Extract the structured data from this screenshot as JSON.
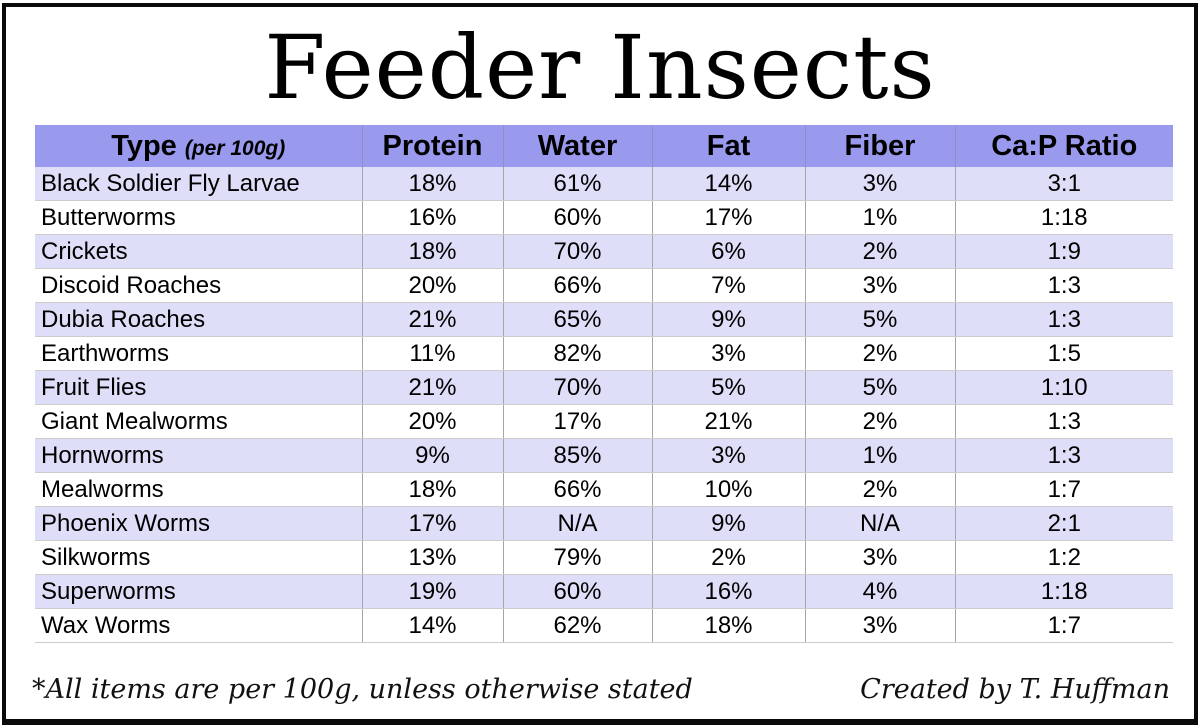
{
  "title": "Feeder Insects",
  "colors": {
    "header_bg": "#9999ee",
    "row_alt_bg": "#dedef8",
    "row_bg": "#ffffff",
    "border": "#0a0a0a",
    "text": "#000000"
  },
  "table": {
    "type_header": {
      "label": "Type",
      "note": "(per 100g)"
    },
    "columns": [
      "Protein",
      "Water",
      "Fat",
      "Fiber",
      "Ca:P Ratio"
    ],
    "rows": [
      {
        "type": "Black Soldier Fly Larvae",
        "values": [
          "18%",
          "61%",
          "14%",
          "3%",
          "3:1"
        ]
      },
      {
        "type": "Butterworms",
        "values": [
          "16%",
          "60%",
          "17%",
          "1%",
          "1:18"
        ]
      },
      {
        "type": "Crickets",
        "values": [
          "18%",
          "70%",
          "6%",
          "2%",
          "1:9"
        ]
      },
      {
        "type": "Discoid Roaches",
        "values": [
          "20%",
          "66%",
          "7%",
          "3%",
          "1:3"
        ]
      },
      {
        "type": "Dubia Roaches",
        "values": [
          "21%",
          "65%",
          "9%",
          "5%",
          "1:3"
        ]
      },
      {
        "type": "Earthworms",
        "values": [
          "11%",
          "82%",
          "3%",
          "2%",
          "1:5"
        ]
      },
      {
        "type": "Fruit Flies",
        "values": [
          "21%",
          "70%",
          "5%",
          "5%",
          "1:10"
        ]
      },
      {
        "type": "Giant Mealworms",
        "values": [
          "20%",
          "17%",
          "21%",
          "2%",
          "1:3"
        ]
      },
      {
        "type": "Hornworms",
        "values": [
          "9%",
          "85%",
          "3%",
          "1%",
          "1:3"
        ]
      },
      {
        "type": "Mealworms",
        "values": [
          "18%",
          "66%",
          "10%",
          "2%",
          "1:7"
        ]
      },
      {
        "type": "Phoenix Worms",
        "values": [
          "17%",
          "N/A",
          "9%",
          "N/A",
          "2:1"
        ]
      },
      {
        "type": "Silkworms",
        "values": [
          "13%",
          "79%",
          "2%",
          "3%",
          "1:2"
        ]
      },
      {
        "type": "Superworms",
        "values": [
          "19%",
          "60%",
          "16%",
          "4%",
          "1:18"
        ]
      },
      {
        "type": "Wax Worms",
        "values": [
          "14%",
          "62%",
          "18%",
          "3%",
          "1:7"
        ]
      }
    ]
  },
  "footer": {
    "note": "*All items are per 100g, unless otherwise stated",
    "credit": "Created by T. Huffman"
  }
}
